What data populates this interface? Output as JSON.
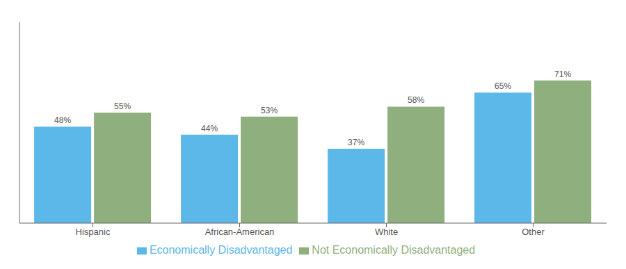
{
  "chart_data": {
    "type": "bar",
    "categories": [
      "Hispanic",
      "African-American",
      "White",
      "Other"
    ],
    "series": [
      {
        "name": "Economically Disadvantaged",
        "color": "#5BB8E8",
        "values": [
          48,
          44,
          37,
          65
        ],
        "value_labels": [
          "48%",
          "44%",
          "37%",
          "65%"
        ]
      },
      {
        "name": "Not Economically Disadvantaged",
        "color": "#8FAF7E",
        "values": [
          55,
          53,
          58,
          71
        ],
        "value_labels": [
          "55%",
          "53%",
          "58%",
          "71%"
        ]
      }
    ],
    "ylim": [
      0,
      100
    ],
    "grid": false,
    "legend": "bottom",
    "data_labels": true,
    "tick_labels": "x"
  }
}
